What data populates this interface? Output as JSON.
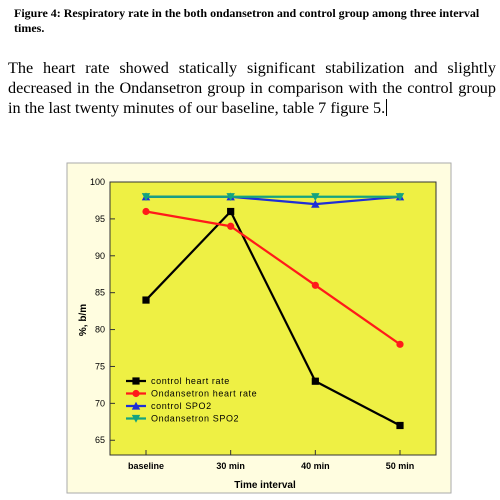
{
  "caption": "Figure 4: Respiratory rate in the both ondansetron and control group among three interval times.",
  "paragraph": "The heart rate showed statically significant stabilization and slightly decreased in the Ondansetron group in comparison with the control group in the last twenty minutes of our baseline, table 7 figure 5.",
  "chart_data": {
    "type": "line",
    "categories": [
      "baseline",
      "30 min",
      "40 min",
      "50 min"
    ],
    "xlabel": "Time interval",
    "ylabel": "%, b/m",
    "ylim": [
      63,
      100
    ],
    "yticks": [
      65,
      70,
      75,
      80,
      85,
      90,
      95,
      100
    ],
    "grid": false,
    "legend_position": "bottom-left",
    "plot_background": "#eef044",
    "frame_background": "#fffde0",
    "series": [
      {
        "name": "control heart rate",
        "values": [
          84,
          96,
          73,
          67
        ],
        "color": "#000000",
        "marker": "square"
      },
      {
        "name": "Ondansetron heart rate",
        "values": [
          96,
          94,
          86,
          78
        ],
        "color": "#ff1a1a",
        "marker": "circle"
      },
      {
        "name": "control SPO2",
        "values": [
          98,
          98,
          97,
          98
        ],
        "color": "#1f2fd6",
        "marker": "triangle-up"
      },
      {
        "name": "Ondansetron SPO2",
        "values": [
          98,
          98,
          98,
          98
        ],
        "color": "#14a37f",
        "marker": "triangle-down"
      }
    ]
  }
}
